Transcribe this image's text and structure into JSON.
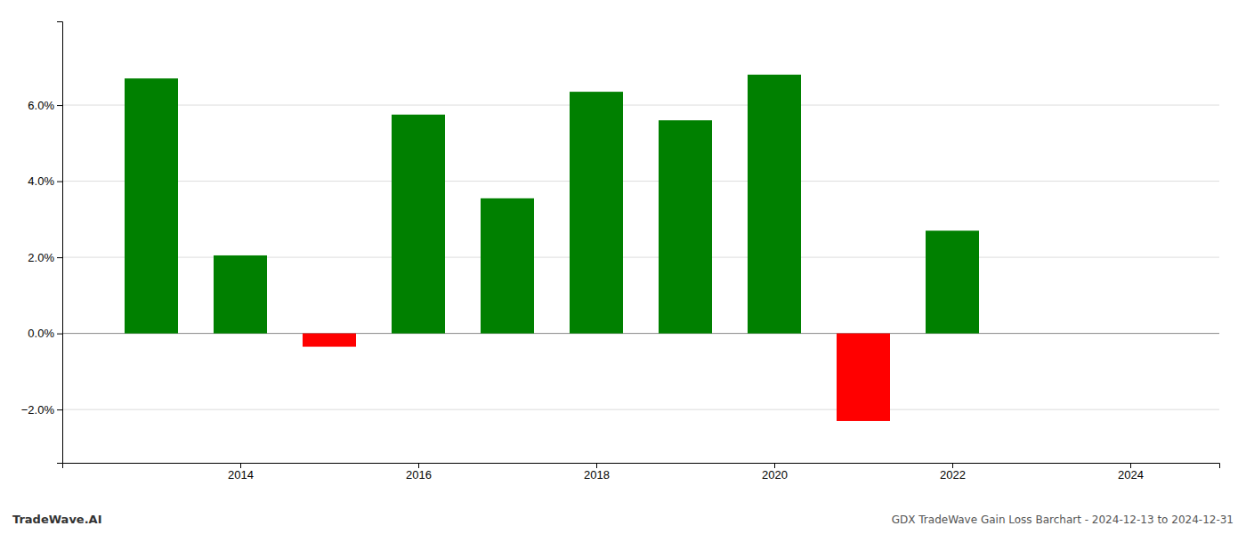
{
  "chart_data": {
    "type": "bar",
    "title": "GDX TradeWave Gain Loss Barchart - 2024-12-13 to 2024-12-31",
    "annotations": [
      "TradeWave.AI"
    ],
    "x": [
      2013,
      2014,
      2015,
      2016,
      2017,
      2018,
      2019,
      2020,
      2021,
      2022
    ],
    "values": [
      0.067,
      0.0205,
      -0.0035,
      0.0575,
      0.0355,
      0.0635,
      0.056,
      0.068,
      -0.023,
      0.027
    ],
    "colors": [
      "#008000",
      "#008000",
      "#ff0000",
      "#008000",
      "#008000",
      "#008000",
      "#008000",
      "#008000",
      "#ff0000",
      "#008000"
    ],
    "xlim": [
      2012.0,
      2025.0
    ],
    "xticks": [
      2014,
      2016,
      2018,
      2020,
      2022,
      2024
    ],
    "ylim": [
      -0.034,
      0.082
    ],
    "yticks": [
      {
        "value": -0.02,
        "label": "−2.0%"
      },
      {
        "value": 0.0,
        "label": "0.0%"
      },
      {
        "value": 0.02,
        "label": "2.0%"
      },
      {
        "value": 0.04,
        "label": "4.0%"
      },
      {
        "value": 0.06,
        "label": "6.0%"
      }
    ],
    "grid": true
  }
}
